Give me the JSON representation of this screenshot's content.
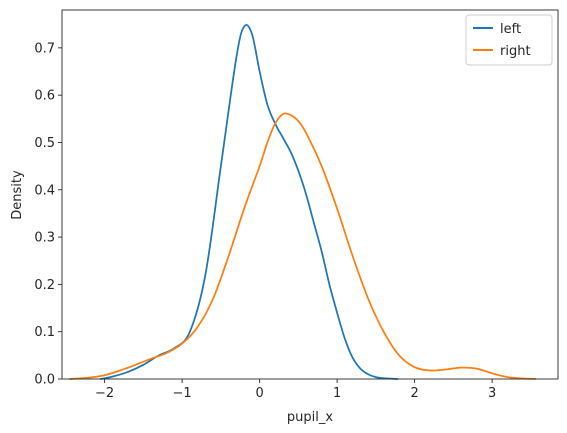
{
  "chart_data": {
    "type": "line",
    "title": "",
    "xlabel": "pupil_x",
    "ylabel": "Density",
    "xlim": [
      -2.55,
      3.85
    ],
    "ylim": [
      0,
      0.78
    ],
    "x_ticks": [
      -2,
      -1,
      0,
      1,
      2,
      3
    ],
    "x_tick_labels": [
      "−2",
      "−1",
      "0",
      "1",
      "2",
      "3"
    ],
    "y_ticks": [
      0.0,
      0.1,
      0.2,
      0.3,
      0.4,
      0.5,
      0.6,
      0.7
    ],
    "y_tick_labels": [
      "0.0",
      "0.1",
      "0.2",
      "0.3",
      "0.4",
      "0.5",
      "0.6",
      "0.7"
    ],
    "grid": false,
    "legend_position": "top-right",
    "series": [
      {
        "name": "left",
        "color": "#1f77b4",
        "x": [
          -2.05,
          -1.9,
          -1.7,
          -1.5,
          -1.3,
          -1.1,
          -0.9,
          -0.7,
          -0.5,
          -0.3,
          -0.2,
          -0.1,
          0.0,
          0.1,
          0.2,
          0.3,
          0.4,
          0.5,
          0.6,
          0.7,
          0.8,
          0.9,
          1.0,
          1.1,
          1.2,
          1.3,
          1.4,
          1.5,
          1.6,
          1.78
        ],
        "y": [
          0.0,
          0.005,
          0.015,
          0.03,
          0.05,
          0.065,
          0.1,
          0.22,
          0.45,
          0.68,
          0.745,
          0.73,
          0.65,
          0.58,
          0.54,
          0.51,
          0.48,
          0.44,
          0.39,
          0.33,
          0.27,
          0.2,
          0.14,
          0.085,
          0.045,
          0.022,
          0.01,
          0.004,
          0.0015,
          0.0
        ]
      },
      {
        "name": "right",
        "color": "#ff7f0e",
        "x": [
          -2.45,
          -2.2,
          -2.0,
          -1.8,
          -1.6,
          -1.4,
          -1.2,
          -1.0,
          -0.8,
          -0.6,
          -0.4,
          -0.2,
          0.0,
          0.1,
          0.2,
          0.3,
          0.4,
          0.5,
          0.6,
          0.8,
          1.0,
          1.2,
          1.4,
          1.6,
          1.8,
          2.0,
          2.2,
          2.4,
          2.6,
          2.8,
          3.0,
          3.2,
          3.4,
          3.56
        ],
        "y": [
          0.0,
          0.003,
          0.008,
          0.018,
          0.03,
          0.043,
          0.055,
          0.075,
          0.11,
          0.17,
          0.26,
          0.36,
          0.45,
          0.5,
          0.54,
          0.56,
          0.558,
          0.545,
          0.52,
          0.45,
          0.36,
          0.26,
          0.17,
          0.1,
          0.05,
          0.025,
          0.018,
          0.02,
          0.024,
          0.022,
          0.012,
          0.004,
          0.001,
          0.0
        ]
      }
    ]
  }
}
